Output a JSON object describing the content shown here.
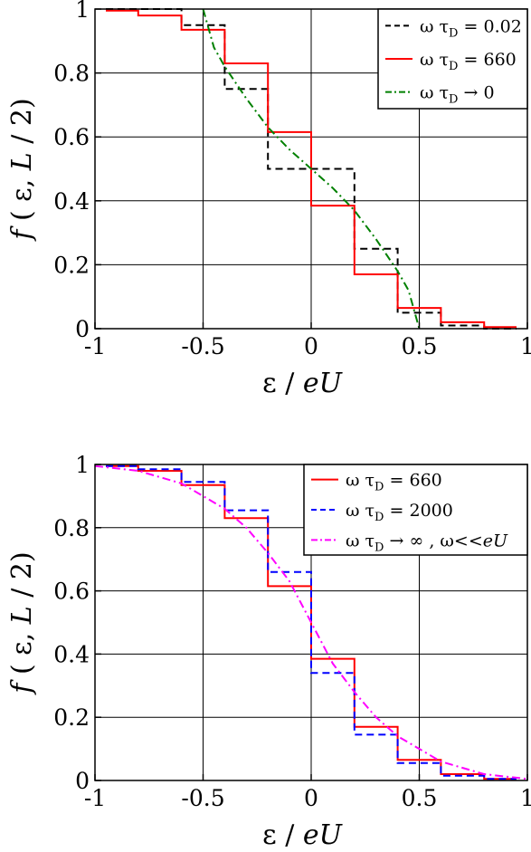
{
  "chart_data": [
    {
      "type": "line",
      "xlabel": "ε / eU",
      "ylabel": "f ( ε, L / 2)",
      "xlim": [
        -1,
        1
      ],
      "ylim": [
        0,
        1
      ],
      "xticks": [
        -1,
        -0.5,
        0,
        0.5,
        1
      ],
      "yticks": [
        0,
        0.2,
        0.4,
        0.6,
        0.8,
        1
      ],
      "xtick_labels": [
        "-1",
        "-0.5",
        "0",
        "0.5",
        "1"
      ],
      "ytick_labels": [
        "0",
        "0.2",
        "0.4",
        "0.6",
        "0.8",
        "1"
      ],
      "grid": true,
      "legend_position": "top-right",
      "series": [
        {
          "name": "ω τD = 0.02",
          "legend": {
            "pre": "ω τ",
            "sub": "D",
            "post": " = 0.02"
          },
          "color": "#000000",
          "style": "dashed",
          "step": true,
          "x": [
            -0.95,
            -0.8,
            -0.6,
            -0.4,
            -0.2,
            0.0,
            0.2,
            0.4,
            0.6,
            0.8,
            0.95
          ],
          "y": [
            1.0,
            1.0,
            0.95,
            0.75,
            0.5,
            0.5,
            0.25,
            0.05,
            0.01,
            0.0,
            0.0
          ]
        },
        {
          "name": "ω τD = 660",
          "legend": {
            "pre": "ω τ",
            "sub": "D",
            "post": " = 660"
          },
          "color": "#ff0000",
          "style": "solid",
          "step": true,
          "x": [
            -0.95,
            -0.8,
            -0.6,
            -0.4,
            -0.2,
            0.0,
            0.2,
            0.4,
            0.6,
            0.8,
            0.95
          ],
          "y": [
            0.995,
            0.98,
            0.935,
            0.83,
            0.615,
            0.385,
            0.17,
            0.065,
            0.02,
            0.005,
            0.005
          ]
        },
        {
          "name": "ω τD → 0",
          "legend": {
            "pre": "ω τ",
            "sub": "D",
            "post": " → 0"
          },
          "color": "#008000",
          "style": "dashdot",
          "step": false,
          "x": [
            -0.5,
            -0.45,
            -0.4,
            -0.3,
            -0.2,
            -0.1,
            0.0,
            0.1,
            0.2,
            0.3,
            0.4,
            0.45,
            0.5
          ],
          "y": [
            1.0,
            0.88,
            0.82,
            0.72,
            0.63,
            0.56,
            0.5,
            0.44,
            0.37,
            0.28,
            0.18,
            0.12,
            0.0
          ]
        }
      ]
    },
    {
      "type": "line",
      "xlabel": "ε / eU",
      "ylabel": "f ( ε, L / 2)",
      "xlim": [
        -1,
        1
      ],
      "ylim": [
        0,
        1
      ],
      "xticks": [
        -1,
        -0.5,
        0,
        0.5,
        1
      ],
      "yticks": [
        0,
        0.2,
        0.4,
        0.6,
        0.8,
        1
      ],
      "xtick_labels": [
        "-1",
        "-0.5",
        "0",
        "0.5",
        "1"
      ],
      "ytick_labels": [
        "0",
        "0.2",
        "0.4",
        "0.6",
        "0.8",
        "1"
      ],
      "grid": true,
      "legend_position": "top-right",
      "series": [
        {
          "name": "ω τD = 660",
          "legend": {
            "pre": "ω τ",
            "sub": "D",
            "post": " = 660"
          },
          "color": "#ff0000",
          "style": "solid",
          "step": true,
          "x": [
            -0.95,
            -0.8,
            -0.6,
            -0.4,
            -0.2,
            0.0,
            0.2,
            0.4,
            0.6,
            0.8,
            0.95
          ],
          "y": [
            0.995,
            0.98,
            0.935,
            0.83,
            0.615,
            0.385,
            0.17,
            0.065,
            0.02,
            0.005,
            0.005
          ]
        },
        {
          "name": "ω τD = 2000",
          "legend": {
            "pre": "ω τ",
            "sub": "D",
            "post": " = 2000"
          },
          "color": "#0000ff",
          "style": "dashed",
          "step": true,
          "x": [
            -0.95,
            -0.8,
            -0.6,
            -0.4,
            -0.2,
            0.0,
            0.2,
            0.4,
            0.6,
            0.8,
            0.95
          ],
          "y": [
            0.995,
            0.985,
            0.945,
            0.855,
            0.66,
            0.34,
            0.145,
            0.055,
            0.015,
            0.005,
            0.005
          ]
        },
        {
          "name": "ω τD → ∞ , ω<<eU",
          "legend": {
            "pre": "ω τ",
            "sub": "D",
            "post": " → ∞ , ω<<",
            "italic": "eU"
          },
          "color": "#ff00ff",
          "style": "dashdot",
          "step": false,
          "x": [
            -1.0,
            -0.8,
            -0.6,
            -0.4,
            -0.3,
            -0.2,
            -0.1,
            0.0,
            0.1,
            0.2,
            0.3,
            0.4,
            0.6,
            0.8,
            1.0
          ],
          "y": [
            0.995,
            0.98,
            0.94,
            0.86,
            0.8,
            0.72,
            0.63,
            0.5,
            0.37,
            0.28,
            0.2,
            0.14,
            0.06,
            0.02,
            0.005
          ]
        }
      ]
    }
  ]
}
